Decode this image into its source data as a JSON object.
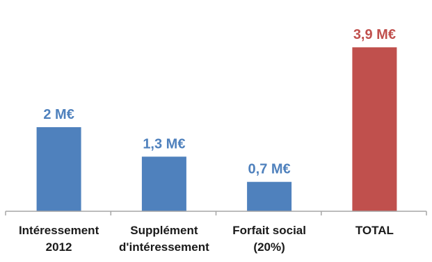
{
  "chart_data": {
    "type": "bar",
    "title": "",
    "xlabel": "",
    "ylabel": "",
    "unit": "M€",
    "ylim": [
      0,
      4.2
    ],
    "grid": false,
    "legend": "none",
    "categories": [
      [
        "Intéressement",
        "2012"
      ],
      [
        "Supplément",
        "d'intéressement"
      ],
      [
        "Forfait social",
        "(20%)"
      ],
      [
        "TOTAL"
      ]
    ],
    "values": [
      2,
      1.3,
      0.7,
      3.9
    ],
    "data_labels": [
      "2 M€",
      "1,3 M€",
      "0,7 M€",
      "3,9 M€"
    ],
    "colors": [
      "#4f81bd",
      "#4f81bd",
      "#4f81bd",
      "#c0504d"
    ],
    "axis_color": "#a6a6a6"
  }
}
